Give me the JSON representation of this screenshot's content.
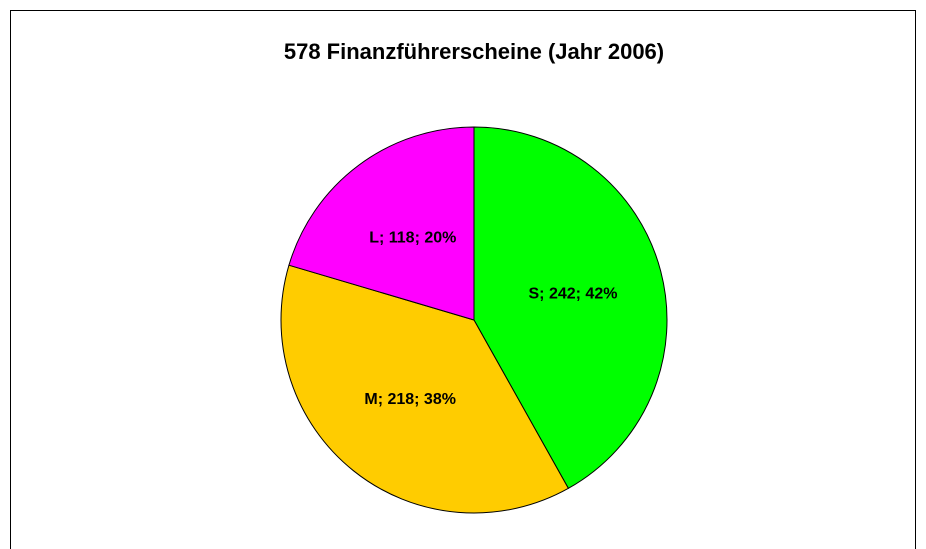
{
  "chart_data": {
    "type": "pie",
    "title": "578 Finanzführerscheine (Jahr 2006)",
    "categories": [
      "S",
      "M",
      "L"
    ],
    "values": [
      242,
      218,
      118
    ],
    "value_labels": [
      "S; 242; 42%",
      "M; 218; 38%",
      "L; 118; 20%"
    ],
    "colors": [
      "#00ff00",
      "#ffcc00",
      "#ff00ff"
    ]
  }
}
